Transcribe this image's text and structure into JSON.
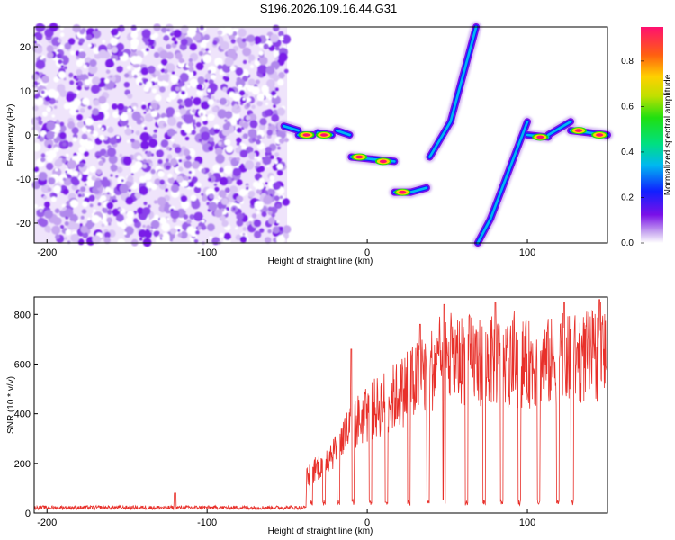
{
  "title": "S196.2026.109.16.44.G31",
  "chart_data": [
    {
      "type": "heatmap",
      "xlabel": "Height of straight line (km)",
      "ylabel": "Frequency (Hz)",
      "xlim": [
        -208,
        150
      ],
      "ylim": [
        -24.5,
        24.5
      ],
      "x_ticks": [
        -200,
        -100,
        0,
        100
      ],
      "y_ticks": [
        -20,
        -10,
        0,
        10,
        20
      ],
      "noise_region_x": [
        -208,
        -50
      ],
      "signal_segments": [
        {
          "x": [
            -52,
            -43
          ],
          "y": [
            2,
            1
          ]
        },
        {
          "x": [
            -43,
            -34
          ],
          "y": [
            0,
            0
          ]
        },
        {
          "x": [
            -31,
            -22
          ],
          "y": [
            0.5,
            0
          ]
        },
        {
          "x": [
            -19,
            -11
          ],
          "y": [
            1,
            0
          ]
        },
        {
          "x": [
            -10,
            3
          ],
          "y": [
            -5,
            -5.5
          ]
        },
        {
          "x": [
            3,
            17
          ],
          "y": [
            -5.5,
            -6
          ]
        },
        {
          "x": [
            17,
            27
          ],
          "y": [
            -13,
            -13
          ]
        },
        {
          "x": [
            27,
            37
          ],
          "y": [
            -13,
            -12
          ]
        },
        {
          "x": [
            39,
            52
          ],
          "y": [
            -5,
            3
          ]
        },
        {
          "x": [
            52,
            68
          ],
          "y": [
            3,
            24.5
          ]
        },
        {
          "x": [
            69,
            77
          ],
          "y": [
            -24.5,
            -19
          ]
        },
        {
          "x": [
            77,
            100
          ],
          "y": [
            -19,
            3
          ]
        },
        {
          "x": [
            100,
            113
          ],
          "y": [
            0,
            -0.5
          ]
        },
        {
          "x": [
            113,
            127
          ],
          "y": [
            0,
            3
          ]
        },
        {
          "x": [
            127,
            150
          ],
          "y": [
            1,
            0
          ]
        }
      ],
      "peaks": [
        {
          "x": -38,
          "y": 0
        },
        {
          "x": -27,
          "y": 0
        },
        {
          "x": -5,
          "y": -5
        },
        {
          "x": 10,
          "y": -6
        },
        {
          "x": 22,
          "y": -13
        },
        {
          "x": 108,
          "y": -0.5
        },
        {
          "x": 132,
          "y": 1
        },
        {
          "x": 145,
          "y": 0
        }
      ],
      "colorbar": {
        "label": "Normalized spectral amplitude",
        "ticks": [
          "0.0",
          "0.2",
          "0.4",
          "0.6",
          "0.8"
        ],
        "range": [
          0,
          0.95
        ]
      }
    },
    {
      "type": "line",
      "xlabel": "Height of straight line (km)",
      "ylabel": "SNR (10 * v/v)",
      "xlim": [
        -208,
        150
      ],
      "ylim": [
        0,
        870
      ],
      "x_ticks": [
        -200,
        -100,
        0,
        100
      ],
      "y_ticks": [
        0,
        200,
        400,
        600,
        800
      ],
      "color": "#e8302a",
      "baseline": {
        "x": [
          -208,
          -38
        ],
        "level": 22,
        "noise": 8,
        "spike_x": -120,
        "spike_y": 80
      },
      "envelope": [
        {
          "x": -38,
          "y": 140
        },
        {
          "x": -30,
          "y": 190
        },
        {
          "x": -20,
          "y": 260
        },
        {
          "x": -10,
          "y": 350
        },
        {
          "x": 0,
          "y": 400
        },
        {
          "x": 10,
          "y": 440
        },
        {
          "x": 20,
          "y": 480
        },
        {
          "x": 30,
          "y": 530
        },
        {
          "x": 40,
          "y": 580
        },
        {
          "x": 50,
          "y": 610
        },
        {
          "x": 60,
          "y": 620
        },
        {
          "x": 80,
          "y": 610
        },
        {
          "x": 100,
          "y": 600
        },
        {
          "x": 120,
          "y": 610
        },
        {
          "x": 140,
          "y": 630
        },
        {
          "x": 150,
          "y": 640
        }
      ],
      "tall_spikes": [
        {
          "x": -10,
          "y": 660
        },
        {
          "x": 33,
          "y": 760
        },
        {
          "x": 48,
          "y": 840
        },
        {
          "x": 80,
          "y": 850
        },
        {
          "x": 123,
          "y": 850
        },
        {
          "x": 145,
          "y": 860
        }
      ],
      "dropouts_x": [
        -35,
        -27,
        -18,
        -9,
        2,
        12,
        26,
        38,
        48,
        62,
        73,
        84,
        95,
        107,
        119,
        128
      ]
    }
  ]
}
